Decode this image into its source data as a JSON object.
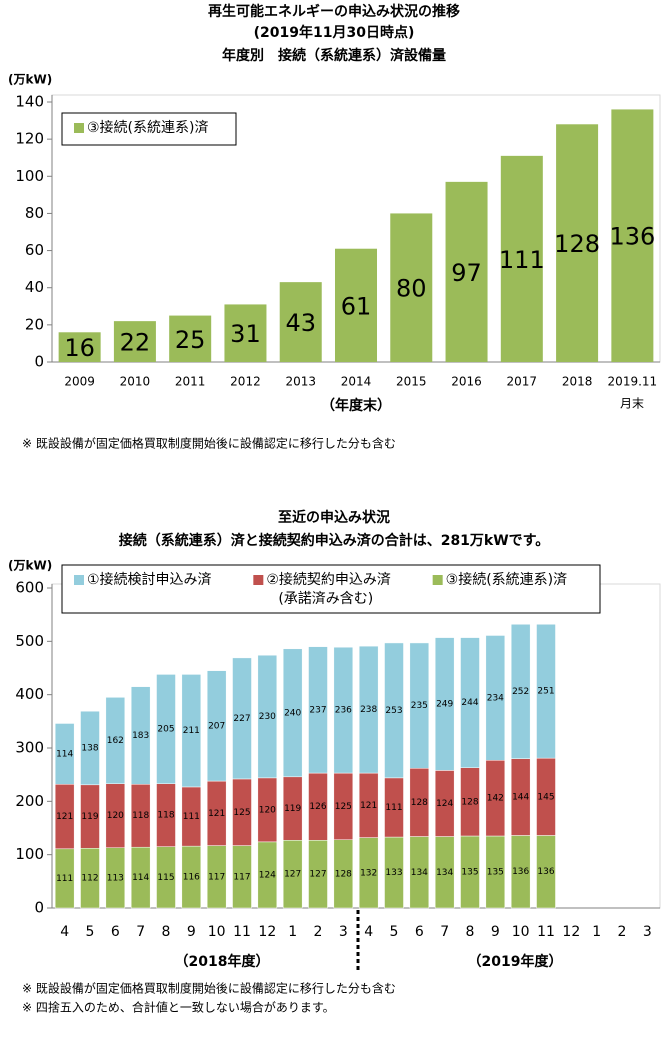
{
  "chart_data": [
    {
      "type": "bar",
      "title": "再生可能エネルギーの申込み状況の推移",
      "subtitle": "(2019年11月30日時点)",
      "subtitle2": "年度別　接続（系統連系）済設備量",
      "y_unit": "(万kW)",
      "x_label": "（年度末）",
      "categories": [
        "2009",
        "2010",
        "2011",
        "2012",
        "2013",
        "2014",
        "2015",
        "2016",
        "2017",
        "2018",
        "2019.11"
      ],
      "x_note": "月末",
      "series": [
        {
          "name": "③接続(系統連系)済",
          "color": "#9bbb59",
          "values": [
            16,
            22,
            25,
            31,
            43,
            61,
            80,
            97,
            111,
            128,
            136
          ]
        }
      ],
      "ylim": [
        0,
        140
      ],
      "yticks": [
        0,
        20,
        40,
        60,
        80,
        100,
        120,
        140
      ],
      "grid": false,
      "notes": [
        "※ 既設設備が固定価格買取制度開始後に設備認定に移行した分も含む"
      ]
    },
    {
      "type": "stacked_bar",
      "title": "至近の申込み状況",
      "subtitle": "接続（系統連系）済と接続契約申込み済の合計は、281万kWです。",
      "y_unit": "(万kW)",
      "categories": [
        "4",
        "5",
        "6",
        "7",
        "8",
        "9",
        "10",
        "11",
        "12",
        "1",
        "2",
        "3",
        "4",
        "5",
        "6",
        "7",
        "8",
        "9",
        "10",
        "11",
        "12",
        "1",
        "2",
        "3"
      ],
      "fiscal_years": [
        "（2018年度）",
        "（2019年度）"
      ],
      "series": [
        {
          "name": "③接続(系統連系)済",
          "color": "#9bbb59",
          "values": [
            111,
            112,
            113,
            114,
            115,
            116,
            117,
            117,
            124,
            127,
            127,
            128,
            132,
            133,
            134,
            134,
            135,
            135,
            136,
            136,
            null,
            null,
            null,
            null
          ]
        },
        {
          "name": "②接続契約申込み済",
          "name_note": "(承諾済み含む)",
          "color": "#c0504d",
          "values": [
            121,
            119,
            120,
            118,
            118,
            111,
            121,
            125,
            120,
            119,
            126,
            125,
            121,
            111,
            128,
            124,
            128,
            142,
            144,
            145,
            null,
            null,
            null,
            null
          ]
        },
        {
          "name": "①接続検討申込み済",
          "color": "#93cddd",
          "values": [
            114,
            138,
            162,
            183,
            205,
            211,
            207,
            227,
            230,
            240,
            237,
            236,
            238,
            253,
            235,
            249,
            244,
            234,
            252,
            251,
            null,
            null,
            null,
            null
          ]
        }
      ],
      "ylim": [
        0,
        600
      ],
      "yticks": [
        0,
        100,
        200,
        300,
        400,
        500,
        600
      ],
      "grid": false,
      "notes": [
        "※ 既設設備が固定価格買取制度開始後に設備認定に移行した分も含む",
        "※ 四捨五入のため、合計値と一致しない場合があります。"
      ]
    }
  ]
}
